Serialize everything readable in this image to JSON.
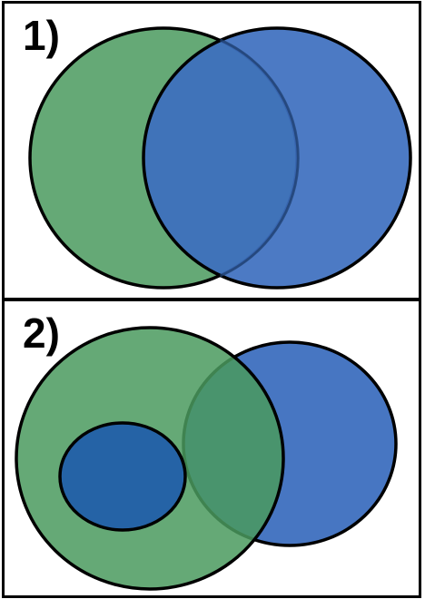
{
  "colors": {
    "green": "#4a9a5e",
    "blue": "#3d6fbf",
    "overlap_blue": "#2563a6",
    "outline": "#000000",
    "background": "#ffffff"
  },
  "panels": [
    {
      "label": "1)"
    },
    {
      "label": "2)"
    }
  ]
}
